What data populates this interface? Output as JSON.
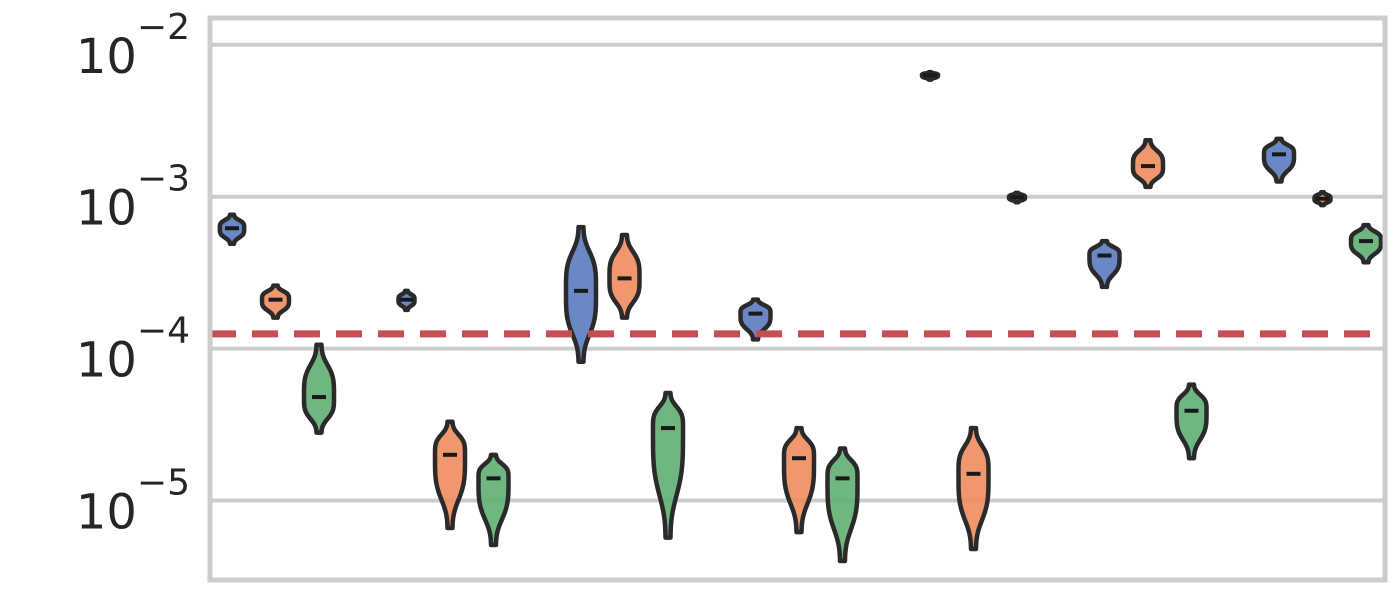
{
  "chart_data": {
    "type": "violin",
    "title": "",
    "xlabel": "",
    "ylabel": "",
    "yscale": "log",
    "ylim": [
      3e-06,
      0.015
    ],
    "yticks": [
      {
        "value": 0.01,
        "base": "10",
        "exp": "−2"
      },
      {
        "value": 0.001,
        "base": "10",
        "exp": "−3"
      },
      {
        "value": 0.0001,
        "base": "10",
        "exp": "−4"
      },
      {
        "value": 1e-05,
        "base": "10",
        "exp": "−5"
      }
    ],
    "grid": "horizontal",
    "legend": "none",
    "reference_line": {
      "value": 0.000125,
      "style": "dashed",
      "color": "#c44e52"
    },
    "series_colors": [
      "#5a7bbf",
      "#ee8c5e",
      "#5fae72"
    ],
    "groups": [
      {
        "x": 1,
        "violins": [
          {
            "series": 0,
            "low": 0.00049,
            "high": 0.00076,
            "median": 0.00062
          },
          {
            "series": 1,
            "low": 0.00016,
            "high": 0.00026,
            "median": 0.00021
          },
          {
            "series": 2,
            "low": 2.8e-05,
            "high": 0.000106,
            "median": 4.8e-05
          }
        ]
      },
      {
        "x": 2,
        "violins": [
          {
            "series": 0,
            "low": 0.00018,
            "high": 0.00024,
            "median": 0.00021
          },
          {
            "series": 1,
            "low": 6.6e-06,
            "high": 3.3e-05,
            "median": 2e-05
          },
          {
            "series": 2,
            "low": 5.1e-06,
            "high": 2e-05,
            "median": 1.4e-05
          }
        ]
      },
      {
        "x": 3,
        "violins": [
          {
            "series": 0,
            "low": 8.2e-05,
            "high": 0.00063,
            "median": 0.00024
          },
          {
            "series": 1,
            "low": 0.00016,
            "high": 0.00056,
            "median": 0.00029
          },
          {
            "series": 2,
            "low": 5.7e-06,
            "high": 5.1e-05,
            "median": 3e-05
          }
        ]
      },
      {
        "x": 4,
        "violins": [
          {
            "series": 0,
            "low": 0.000115,
            "high": 0.00021,
            "median": 0.00017
          },
          {
            "series": 1,
            "low": 6.2e-06,
            "high": 3e-05,
            "median": 1.9e-05
          },
          {
            "series": 2,
            "low": 4e-06,
            "high": 2.2e-05,
            "median": 1.4e-05
          }
        ]
      },
      {
        "x": 5,
        "violins": [
          {
            "series": 0,
            "low": 0.0059,
            "high": 0.0066,
            "median": 0.0063
          },
          {
            "series": 1,
            "low": 4.8e-06,
            "high": 3e-05,
            "median": 1.5e-05
          },
          {
            "series": 2,
            "low": 0.00092,
            "high": 0.00106,
            "median": 0.00099
          }
        ]
      },
      {
        "x": 6,
        "violins": [
          {
            "series": 0,
            "low": 0.000255,
            "high": 0.00051,
            "median": 0.00041
          },
          {
            "series": 1,
            "low": 0.00116,
            "high": 0.00235,
            "median": 0.00159
          },
          {
            "series": 2,
            "low": 1.9e-05,
            "high": 5.8e-05,
            "median": 3.9e-05
          }
        ]
      },
      {
        "x": 7,
        "violins": [
          {
            "series": 0,
            "low": 0.00126,
            "high": 0.0024,
            "median": 0.0019
          },
          {
            "series": 1,
            "low": 0.00088,
            "high": 0.00107,
            "median": 0.00097
          },
          {
            "series": 2,
            "low": 0.00037,
            "high": 0.00065,
            "median": 0.00051
          }
        ]
      }
    ]
  }
}
